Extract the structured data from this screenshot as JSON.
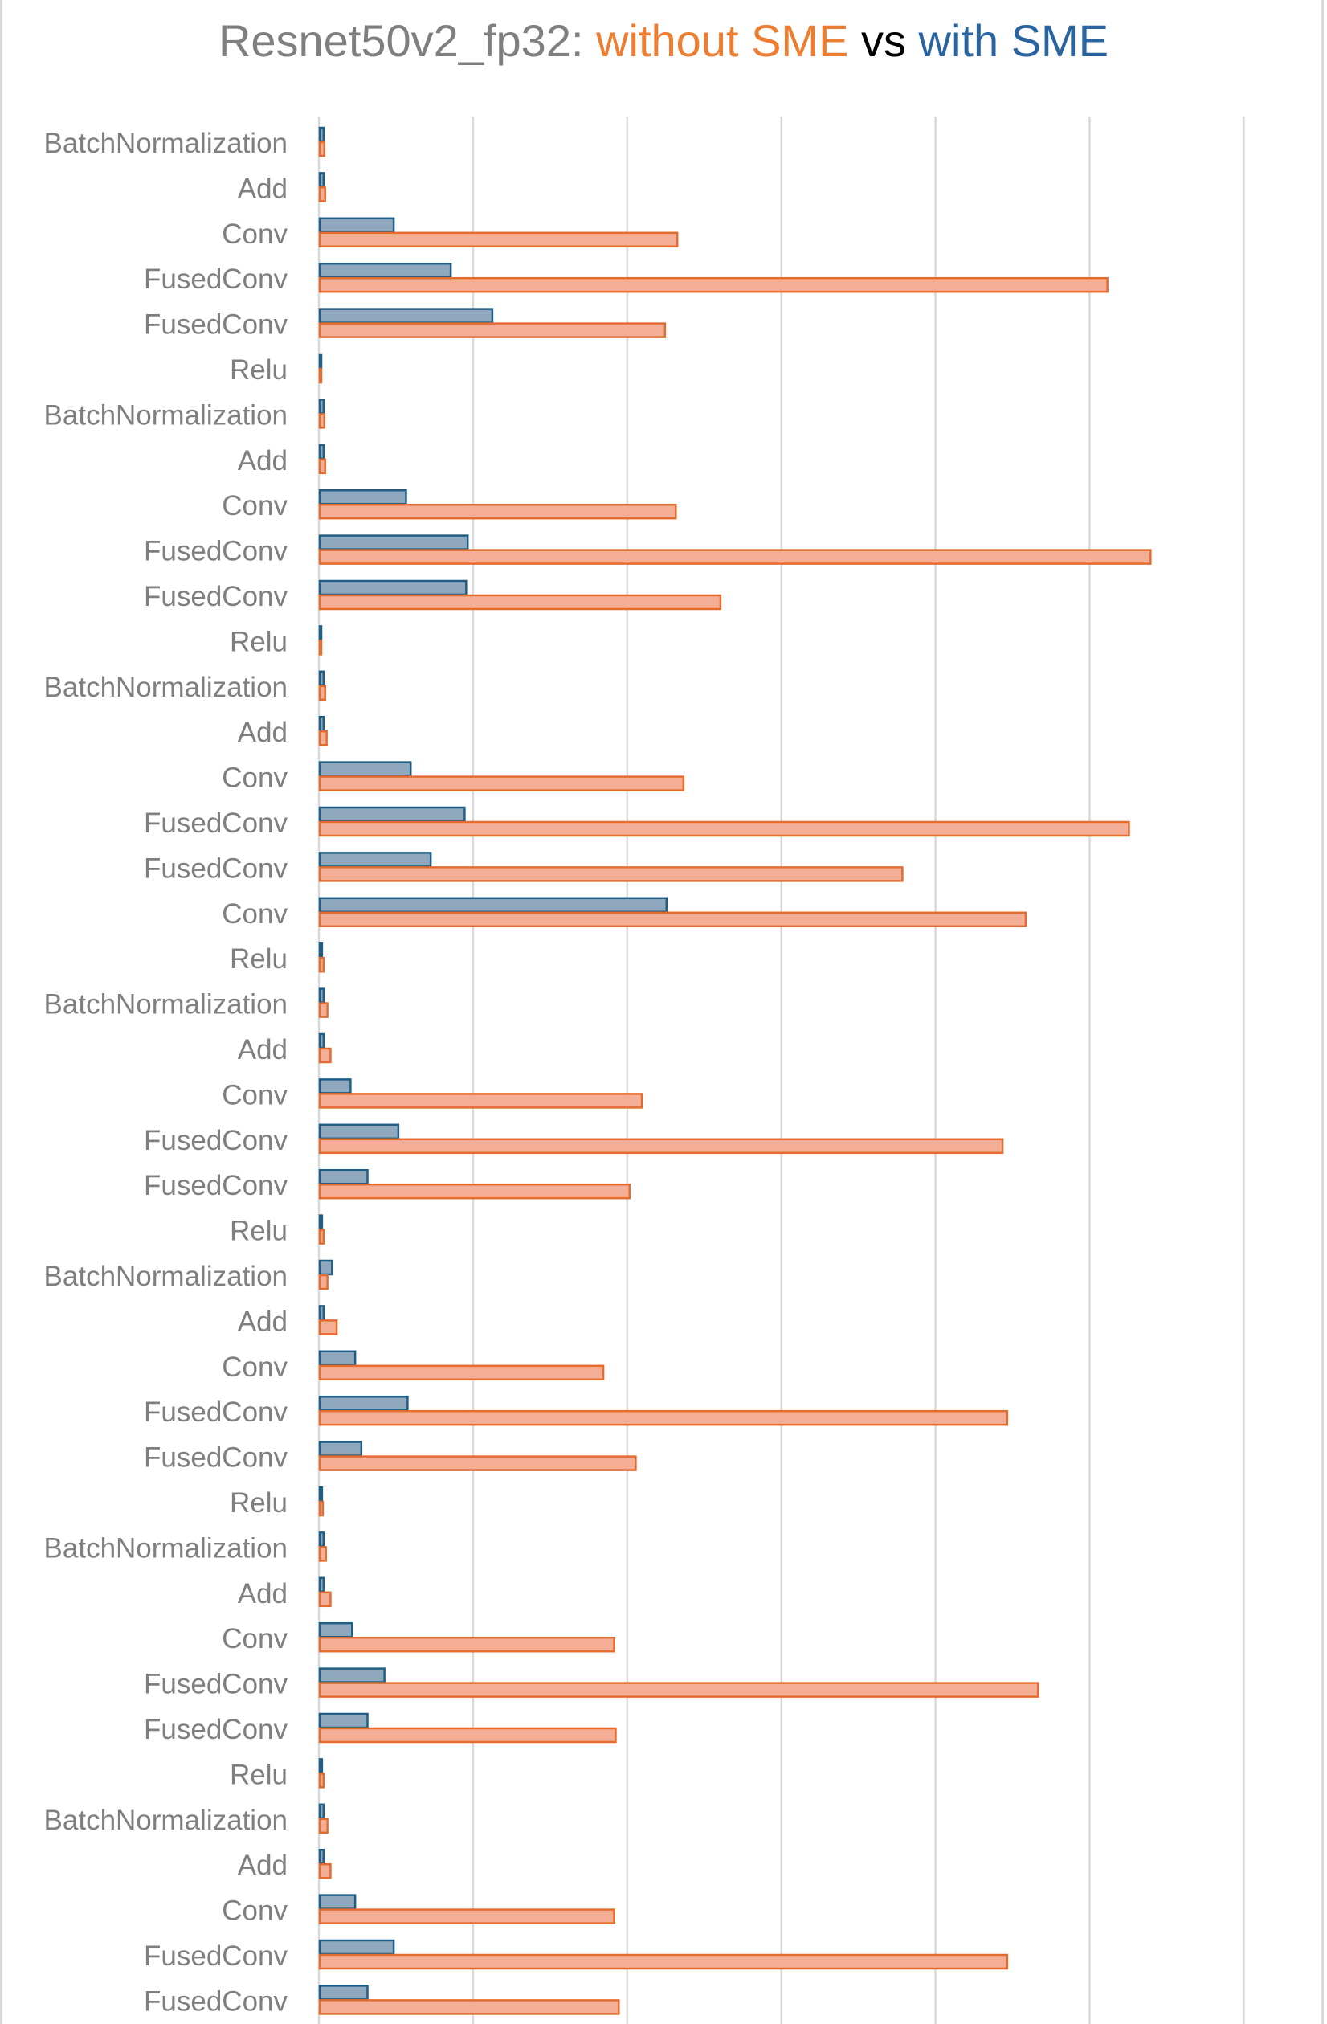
{
  "title": {
    "prefix": "Resnet50v2_fp32: ",
    "without": "without SME",
    "vs": " vs ",
    "with": "with SME",
    "colors": {
      "prefix": "#7f7f7f",
      "without": "#ed7d31",
      "vs": "#000000",
      "with": "#2a64a0"
    }
  },
  "chart_data": {
    "type": "bar",
    "orientation": "horizontal",
    "grid": true,
    "xlim": [
      0,
      6
    ],
    "x_ticks_labeled": false,
    "categories": [
      "BatchNormalization",
      "Add",
      "Conv",
      "FusedConv",
      "FusedConv",
      "Relu",
      "BatchNormalization",
      "Add",
      "Conv",
      "FusedConv",
      "FusedConv",
      "Relu",
      "BatchNormalization",
      "Add",
      "Conv",
      "FusedConv",
      "FusedConv",
      "Conv",
      "Relu",
      "BatchNormalization",
      "Add",
      "Conv",
      "FusedConv",
      "FusedConv",
      "Relu",
      "BatchNormalization",
      "Add",
      "Conv",
      "FusedConv",
      "FusedConv",
      "Relu",
      "BatchNormalization",
      "Add",
      "Conv",
      "FusedConv",
      "FusedConv",
      "Relu",
      "BatchNormalization",
      "Add",
      "Conv",
      "FusedConv",
      "FusedConv"
    ],
    "series": [
      {
        "key": "with_sme",
        "color": "#1f5f86",
        "fill": "#8fa8bd",
        "values": [
          0.025,
          0.025,
          0.48,
          0.85,
          1.12,
          0.01,
          0.025,
          0.025,
          0.56,
          0.96,
          0.95,
          0.01,
          0.025,
          0.025,
          0.59,
          0.94,
          0.72,
          2.25,
          0.015,
          0.025,
          0.025,
          0.2,
          0.51,
          0.31,
          0.015,
          0.08,
          0.025,
          0.23,
          0.57,
          0.27,
          0.015,
          0.025,
          0.025,
          0.21,
          0.42,
          0.31,
          0.015,
          0.025,
          0.025,
          0.23,
          0.48,
          0.31
        ]
      },
      {
        "key": "without_sme",
        "color": "#e46c2e",
        "fill": "#f4ae95",
        "values": [
          0.03,
          0.035,
          2.32,
          5.11,
          2.24,
          0.01,
          0.03,
          0.035,
          2.31,
          5.39,
          2.6,
          0.01,
          0.035,
          0.045,
          2.36,
          5.25,
          3.78,
          4.58,
          0.025,
          0.05,
          0.07,
          2.09,
          4.43,
          2.01,
          0.025,
          0.05,
          0.11,
          1.84,
          4.46,
          2.05,
          0.02,
          0.04,
          0.07,
          1.91,
          4.66,
          1.92,
          0.025,
          0.05,
          0.07,
          1.91,
          4.46,
          1.94
        ]
      }
    ]
  }
}
